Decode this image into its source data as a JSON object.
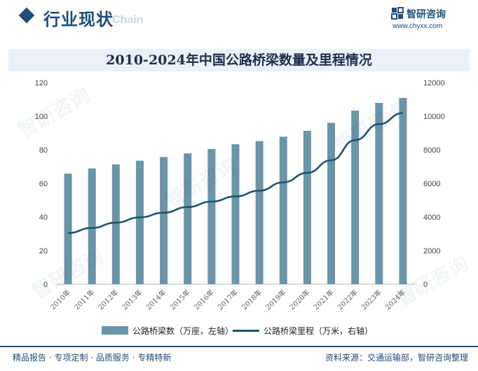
{
  "header": {
    "title": "行业现状",
    "watermark": "Chain",
    "logo_name": "智研咨询",
    "logo_url": "www.chyxx.com"
  },
  "watermark_text": "智研咨询",
  "colors": {
    "bar": "#6a95a9",
    "line": "#1b5670",
    "brand": "#1f4e79"
  },
  "chart_data": {
    "type": "bar",
    "title": "2010-2024年中国公路桥梁数量及里程情况",
    "categories": [
      "2010年",
      "2011年",
      "2012年",
      "2013年",
      "2014年",
      "2015年",
      "2016年",
      "2017年",
      "2018年",
      "2019年",
      "2020年",
      "2021年",
      "2022年",
      "2023年",
      "2024年"
    ],
    "series": [
      {
        "name": "公路桥梁数（万座，左轴）",
        "type": "bar",
        "axis": "left",
        "values": [
          65.8,
          68.9,
          71.3,
          73.5,
          75.7,
          77.9,
          80.5,
          83.3,
          85.2,
          87.8,
          91.3,
          96.1,
          103.3,
          107.9,
          110.9
        ]
      },
      {
        "name": "公路桥梁里程（万米，右轴）",
        "type": "line",
        "axis": "right",
        "values": [
          3048,
          3349,
          3662,
          3978,
          4257,
          4592,
          4917,
          5225,
          5568,
          6063,
          6628,
          7380,
          8576,
          9528,
          10190
        ]
      }
    ],
    "ylim_left": [
      0,
      120
    ],
    "yticks_left": [
      0,
      20,
      40,
      60,
      80,
      100,
      120
    ],
    "ylim_right": [
      0,
      12000
    ],
    "yticks_right": [
      0,
      2000,
      4000,
      6000,
      8000,
      10000,
      12000
    ],
    "legend_position": "bottom"
  },
  "footer": {
    "left": "精品报告 · 专项定制 · 品质服务 · 专精特新",
    "right": "资料来源：交通运输部，智研咨询整理"
  }
}
